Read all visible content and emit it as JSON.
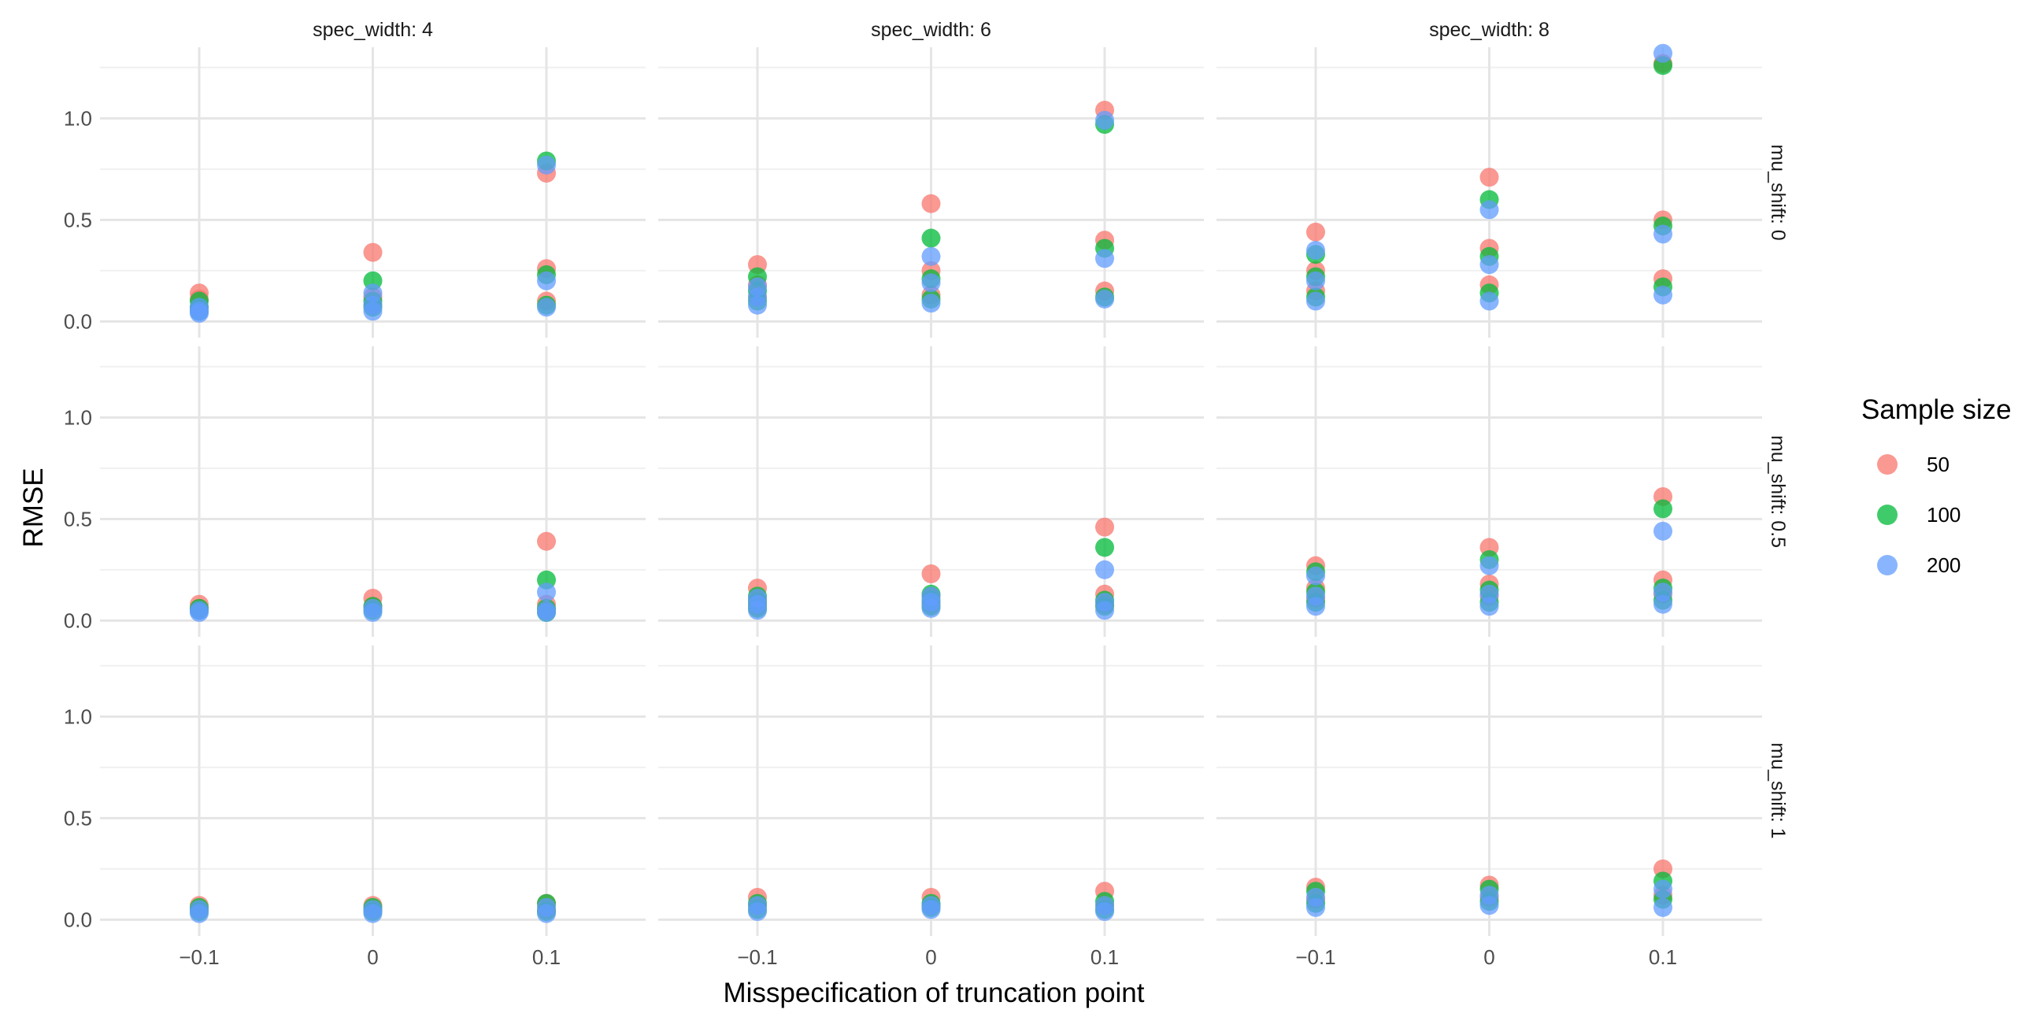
{
  "chart_data": {
    "type": "scatter",
    "title": "",
    "xlabel": "Misspecification of truncation point",
    "ylabel": "RMSE",
    "x_categories": [
      "−0.1",
      "0",
      "0.1"
    ],
    "y_ticks": [
      "0.0",
      "0.5",
      "1.0"
    ],
    "ylim": [
      -0.08,
      1.35
    ],
    "columns": [
      "spec_width: 4",
      "spec_width: 6",
      "spec_width: 8"
    ],
    "rows": [
      "mu_shift: 0",
      "mu_shift: 0.5",
      "mu_shift: 1"
    ],
    "legend": {
      "title": "Sample size",
      "position": "right",
      "items": [
        {
          "label": "50",
          "color": "#F8766D"
        },
        {
          "label": "100",
          "color": "#00BA38"
        },
        {
          "label": "200",
          "color": "#619CFF"
        }
      ]
    },
    "panels": [
      {
        "row": 0,
        "col": 0,
        "series": {
          "50": [
            [
              0,
              0.14
            ],
            [
              0,
              0.11
            ],
            [
              0,
              0.07
            ],
            [
              1,
              0.34
            ],
            [
              1,
              0.12
            ],
            [
              1,
              0.08
            ],
            [
              2,
              0.73
            ],
            [
              2,
              0.26
            ],
            [
              2,
              0.1
            ]
          ],
          "100": [
            [
              0,
              0.1
            ],
            [
              0,
              0.07
            ],
            [
              0,
              0.05
            ],
            [
              1,
              0.2
            ],
            [
              1,
              0.1
            ],
            [
              1,
              0.07
            ],
            [
              2,
              0.79
            ],
            [
              2,
              0.23
            ],
            [
              2,
              0.08
            ]
          ],
          "200": [
            [
              0,
              0.07
            ],
            [
              0,
              0.05
            ],
            [
              0,
              0.04
            ],
            [
              1,
              0.14
            ],
            [
              1,
              0.08
            ],
            [
              1,
              0.05
            ],
            [
              2,
              0.77
            ],
            [
              2,
              0.2
            ],
            [
              2,
              0.07
            ]
          ]
        }
      },
      {
        "row": 0,
        "col": 1,
        "series": {
          "50": [
            [
              0,
              0.28
            ],
            [
              0,
              0.18
            ],
            [
              0,
              0.12
            ],
            [
              1,
              0.58
            ],
            [
              1,
              0.25
            ],
            [
              1,
              0.13
            ],
            [
              2,
              1.04
            ],
            [
              2,
              0.4
            ],
            [
              2,
              0.15
            ]
          ],
          "100": [
            [
              0,
              0.22
            ],
            [
              0,
              0.15
            ],
            [
              0,
              0.1
            ],
            [
              1,
              0.41
            ],
            [
              1,
              0.21
            ],
            [
              1,
              0.11
            ],
            [
              2,
              0.97
            ],
            [
              2,
              0.36
            ],
            [
              2,
              0.12
            ]
          ],
          "200": [
            [
              0,
              0.17
            ],
            [
              0,
              0.12
            ],
            [
              0,
              0.08
            ],
            [
              1,
              0.32
            ],
            [
              1,
              0.19
            ],
            [
              1,
              0.09
            ],
            [
              2,
              0.99
            ],
            [
              2,
              0.31
            ],
            [
              2,
              0.11
            ]
          ]
        }
      },
      {
        "row": 0,
        "col": 2,
        "series": {
          "50": [
            [
              0,
              0.44
            ],
            [
              0,
              0.25
            ],
            [
              0,
              0.15
            ],
            [
              1,
              0.71
            ],
            [
              1,
              0.36
            ],
            [
              1,
              0.18
            ],
            [
              2,
              0.5
            ],
            [
              2,
              0.21
            ],
            [
              2,
              1.27
            ]
          ],
          "100": [
            [
              0,
              0.33
            ],
            [
              0,
              0.22
            ],
            [
              0,
              0.12
            ],
            [
              1,
              0.6
            ],
            [
              1,
              0.32
            ],
            [
              1,
              0.14
            ],
            [
              2,
              1.26
            ],
            [
              2,
              0.47
            ],
            [
              2,
              0.17
            ]
          ],
          "200": [
            [
              0,
              0.35
            ],
            [
              0,
              0.2
            ],
            [
              0,
              0.1
            ],
            [
              1,
              0.55
            ],
            [
              1,
              0.28
            ],
            [
              1,
              0.1
            ],
            [
              2,
              1.32
            ],
            [
              2,
              0.43
            ],
            [
              2,
              0.13
            ]
          ]
        }
      },
      {
        "row": 1,
        "col": 0,
        "series": {
          "50": [
            [
              0,
              0.08
            ],
            [
              0,
              0.06
            ],
            [
              1,
              0.11
            ],
            [
              1,
              0.07
            ],
            [
              2,
              0.39
            ],
            [
              2,
              0.08
            ],
            [
              2,
              0.05
            ]
          ],
          "100": [
            [
              0,
              0.06
            ],
            [
              0,
              0.05
            ],
            [
              1,
              0.07
            ],
            [
              1,
              0.05
            ],
            [
              2,
              0.2
            ],
            [
              2,
              0.06
            ],
            [
              2,
              0.04
            ]
          ],
          "200": [
            [
              0,
              0.05
            ],
            [
              0,
              0.04
            ],
            [
              1,
              0.06
            ],
            [
              1,
              0.04
            ],
            [
              2,
              0.14
            ],
            [
              2,
              0.05
            ],
            [
              2,
              0.04
            ]
          ]
        }
      },
      {
        "row": 1,
        "col": 1,
        "series": {
          "50": [
            [
              0,
              0.16
            ],
            [
              0,
              0.1
            ],
            [
              0,
              0.07
            ],
            [
              1,
              0.23
            ],
            [
              1,
              0.12
            ],
            [
              1,
              0.08
            ],
            [
              2,
              0.46
            ],
            [
              2,
              0.13
            ],
            [
              2,
              0.08
            ]
          ],
          "100": [
            [
              0,
              0.12
            ],
            [
              0,
              0.09
            ],
            [
              0,
              0.06
            ],
            [
              1,
              0.13
            ],
            [
              1,
              0.1
            ],
            [
              1,
              0.07
            ],
            [
              2,
              0.36
            ],
            [
              2,
              0.1
            ],
            [
              2,
              0.07
            ]
          ],
          "200": [
            [
              0,
              0.11
            ],
            [
              0,
              0.08
            ],
            [
              0,
              0.05
            ],
            [
              1,
              0.12
            ],
            [
              1,
              0.09
            ],
            [
              1,
              0.06
            ],
            [
              2,
              0.25
            ],
            [
              2,
              0.09
            ],
            [
              2,
              0.05
            ]
          ]
        }
      },
      {
        "row": 1,
        "col": 2,
        "series": {
          "50": [
            [
              0,
              0.27
            ],
            [
              0,
              0.16
            ],
            [
              0,
              0.11
            ],
            [
              1,
              0.36
            ],
            [
              1,
              0.18
            ],
            [
              1,
              0.12
            ],
            [
              2,
              0.61
            ],
            [
              2,
              0.2
            ],
            [
              2,
              0.13
            ]
          ],
          "100": [
            [
              0,
              0.24
            ],
            [
              0,
              0.14
            ],
            [
              0,
              0.09
            ],
            [
              1,
              0.3
            ],
            [
              1,
              0.15
            ],
            [
              1,
              0.09
            ],
            [
              2,
              0.55
            ],
            [
              2,
              0.16
            ],
            [
              2,
              0.1
            ]
          ],
          "200": [
            [
              0,
              0.22
            ],
            [
              0,
              0.12
            ],
            [
              0,
              0.07
            ],
            [
              1,
              0.27
            ],
            [
              1,
              0.13
            ],
            [
              1,
              0.07
            ],
            [
              2,
              0.44
            ],
            [
              2,
              0.14
            ],
            [
              2,
              0.08
            ]
          ]
        }
      },
      {
        "row": 2,
        "col": 0,
        "series": {
          "50": [
            [
              0,
              0.07
            ],
            [
              0,
              0.05
            ],
            [
              1,
              0.07
            ],
            [
              1,
              0.05
            ],
            [
              2,
              0.08
            ],
            [
              2,
              0.05
            ]
          ],
          "100": [
            [
              0,
              0.06
            ],
            [
              0,
              0.04
            ],
            [
              1,
              0.06
            ],
            [
              1,
              0.04
            ],
            [
              2,
              0.08
            ],
            [
              2,
              0.04
            ]
          ],
          "200": [
            [
              0,
              0.05
            ],
            [
              0,
              0.03
            ],
            [
              1,
              0.05
            ],
            [
              1,
              0.03
            ],
            [
              2,
              0.06
            ],
            [
              2,
              0.03
            ]
          ]
        }
      },
      {
        "row": 2,
        "col": 1,
        "series": {
          "50": [
            [
              0,
              0.11
            ],
            [
              0,
              0.07
            ],
            [
              1,
              0.11
            ],
            [
              1,
              0.07
            ],
            [
              2,
              0.14
            ],
            [
              2,
              0.07
            ]
          ],
          "100": [
            [
              0,
              0.08
            ],
            [
              0,
              0.05
            ],
            [
              1,
              0.08
            ],
            [
              1,
              0.06
            ],
            [
              2,
              0.09
            ],
            [
              2,
              0.05
            ]
          ],
          "200": [
            [
              0,
              0.07
            ],
            [
              0,
              0.04
            ],
            [
              1,
              0.07
            ],
            [
              1,
              0.05
            ],
            [
              2,
              0.07
            ],
            [
              2,
              0.04
            ]
          ]
        }
      },
      {
        "row": 2,
        "col": 2,
        "series": {
          "50": [
            [
              0,
              0.16
            ],
            [
              0,
              0.1
            ],
            [
              1,
              0.17
            ],
            [
              1,
              0.11
            ],
            [
              2,
              0.25
            ],
            [
              2,
              0.12
            ]
          ],
          "100": [
            [
              0,
              0.14
            ],
            [
              0,
              0.08
            ],
            [
              1,
              0.15
            ],
            [
              1,
              0.09
            ],
            [
              2,
              0.19
            ],
            [
              2,
              0.1
            ]
          ],
          "200": [
            [
              0,
              0.11
            ],
            [
              0,
              0.06
            ],
            [
              1,
              0.12
            ],
            [
              1,
              0.07
            ],
            [
              2,
              0.15
            ],
            [
              2,
              0.06
            ]
          ]
        }
      }
    ]
  }
}
